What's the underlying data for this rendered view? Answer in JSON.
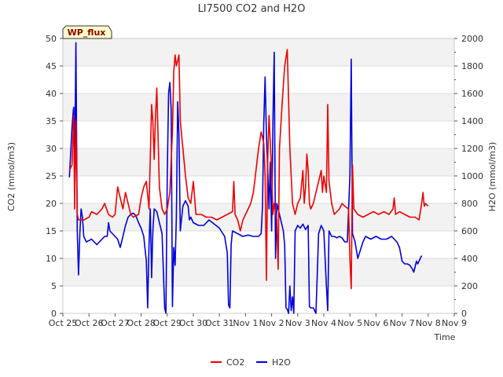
{
  "chart_data": {
    "type": "line",
    "title": "LI7500 CO2 and H2O",
    "xlabel": "Time",
    "ylabel_left": "CO2 (mmol/m3)",
    "ylabel_right": "H2O (mmol/m3)",
    "ylim_left": [
      0,
      50
    ],
    "ylim_right": [
      0,
      2000
    ],
    "xlim": [
      0,
      15
    ],
    "yticks_left": [
      0,
      5,
      10,
      15,
      20,
      25,
      30,
      35,
      40,
      45,
      50
    ],
    "yticks_right": [
      0,
      200,
      400,
      600,
      800,
      1000,
      1200,
      1400,
      1600,
      1800,
      2000
    ],
    "x_tick_labels": [
      "Oct 25",
      "Oct 26",
      "Oct 27",
      "Oct 28",
      "Oct 29",
      "Oct 30",
      "Oct 31",
      "Nov 1",
      "Nov 2",
      "Nov 3",
      "Nov 4",
      "Nov 5",
      "Nov 6",
      "Nov 7",
      "Nov 8",
      "Nov 9"
    ],
    "badge": "WP_flux",
    "legend_position": "bottom-center",
    "series": [
      {
        "name": "CO2",
        "color": "#ee0000",
        "axis": "left",
        "points": [
          [
            0.25,
            26
          ],
          [
            0.35,
            27
          ],
          [
            0.42,
            36
          ],
          [
            0.45,
            19
          ],
          [
            0.5,
            35
          ],
          [
            0.55,
            18
          ],
          [
            0.6,
            17
          ],
          [
            0.8,
            17
          ],
          [
            1.0,
            17.5
          ],
          [
            1.1,
            18.5
          ],
          [
            1.3,
            18
          ],
          [
            1.5,
            19
          ],
          [
            1.6,
            20
          ],
          [
            1.75,
            18
          ],
          [
            1.9,
            17.5
          ],
          [
            2.0,
            18
          ],
          [
            2.1,
            23
          ],
          [
            2.2,
            21
          ],
          [
            2.3,
            19
          ],
          [
            2.4,
            22
          ],
          [
            2.5,
            20
          ],
          [
            2.6,
            18
          ],
          [
            2.7,
            17.5
          ],
          [
            2.9,
            18
          ],
          [
            3.0,
            21
          ],
          [
            3.1,
            23
          ],
          [
            3.2,
            24
          ],
          [
            3.3,
            19
          ],
          [
            3.4,
            38
          ],
          [
            3.45,
            35
          ],
          [
            3.5,
            28
          ],
          [
            3.55,
            36
          ],
          [
            3.6,
            41
          ],
          [
            3.7,
            23
          ],
          [
            3.8,
            19
          ],
          [
            3.9,
            18
          ],
          [
            4.0,
            19
          ],
          [
            4.1,
            22
          ],
          [
            4.2,
            33
          ],
          [
            4.25,
            44
          ],
          [
            4.3,
            47
          ],
          [
            4.35,
            45
          ],
          [
            4.4,
            46
          ],
          [
            4.45,
            47
          ],
          [
            4.5,
            35
          ],
          [
            4.6,
            30
          ],
          [
            4.7,
            25
          ],
          [
            4.8,
            21
          ],
          [
            4.9,
            20
          ],
          [
            5.0,
            24
          ],
          [
            5.1,
            18
          ],
          [
            5.3,
            18
          ],
          [
            5.5,
            17.5
          ],
          [
            5.7,
            17.5
          ],
          [
            5.9,
            17
          ],
          [
            6.1,
            17.5
          ],
          [
            6.3,
            18
          ],
          [
            6.5,
            18.5
          ],
          [
            6.55,
            24
          ],
          [
            6.6,
            18
          ],
          [
            6.7,
            17
          ],
          [
            6.8,
            15
          ],
          [
            6.9,
            17
          ],
          [
            7.0,
            18
          ],
          [
            7.1,
            19
          ],
          [
            7.2,
            20
          ],
          [
            7.3,
            22
          ],
          [
            7.4,
            26
          ],
          [
            7.5,
            30
          ],
          [
            7.6,
            33
          ],
          [
            7.7,
            31
          ],
          [
            7.75,
            25
          ],
          [
            7.8,
            6
          ],
          [
            7.85,
            28
          ],
          [
            7.9,
            36
          ],
          [
            8.0,
            26
          ],
          [
            8.05,
            18
          ],
          [
            8.1,
            20
          ],
          [
            8.2,
            17
          ],
          [
            8.25,
            8
          ],
          [
            8.3,
            30
          ],
          [
            8.4,
            38
          ],
          [
            8.5,
            45
          ],
          [
            8.6,
            48
          ],
          [
            8.7,
            30
          ],
          [
            8.8,
            20
          ],
          [
            8.9,
            18
          ],
          [
            9.0,
            20
          ],
          [
            9.1,
            21
          ],
          [
            9.2,
            26
          ],
          [
            9.25,
            20
          ],
          [
            9.3,
            23
          ],
          [
            9.35,
            29
          ],
          [
            9.4,
            26
          ],
          [
            9.45,
            20
          ],
          [
            9.5,
            19
          ],
          [
            9.6,
            20
          ],
          [
            9.7,
            22
          ],
          [
            9.8,
            24
          ],
          [
            9.9,
            26
          ],
          [
            9.95,
            22
          ],
          [
            10.0,
            25
          ],
          [
            10.1,
            22
          ],
          [
            10.15,
            38
          ],
          [
            10.2,
            24
          ],
          [
            10.3,
            20
          ],
          [
            10.4,
            18
          ],
          [
            10.5,
            18.5
          ],
          [
            10.6,
            19
          ],
          [
            10.7,
            20
          ],
          [
            10.8,
            19.5
          ],
          [
            10.95,
            19
          ],
          [
            11.0,
            10
          ],
          [
            11.05,
            4.5
          ],
          [
            11.1,
            27
          ],
          [
            11.15,
            19
          ],
          [
            11.3,
            18
          ],
          [
            11.5,
            17.5
          ],
          [
            11.7,
            18
          ],
          [
            11.9,
            18.5
          ],
          [
            12.1,
            18
          ],
          [
            12.3,
            18.5
          ],
          [
            12.5,
            18
          ],
          [
            12.65,
            19
          ],
          [
            12.7,
            21
          ],
          [
            12.75,
            18
          ],
          [
            12.9,
            18.5
          ],
          [
            13.1,
            18
          ],
          [
            13.3,
            17.5
          ],
          [
            13.5,
            17.5
          ],
          [
            13.65,
            17
          ],
          [
            13.75,
            20
          ],
          [
            13.8,
            22
          ],
          [
            13.85,
            19.5
          ],
          [
            13.9,
            20
          ],
          [
            14.0,
            19.5
          ]
        ]
      },
      {
        "name": "H2O",
        "color": "#0000dd",
        "axis": "right",
        "points": [
          [
            0.25,
            990
          ],
          [
            0.35,
            1350
          ],
          [
            0.4,
            1480
          ],
          [
            0.42,
            1500
          ],
          [
            0.45,
            1000
          ],
          [
            0.5,
            1970
          ],
          [
            0.55,
            600
          ],
          [
            0.6,
            280
          ],
          [
            0.65,
            580
          ],
          [
            0.7,
            760
          ],
          [
            0.75,
            700
          ],
          [
            0.8,
            560
          ],
          [
            0.9,
            520
          ],
          [
            1.0,
            530
          ],
          [
            1.1,
            540
          ],
          [
            1.2,
            520
          ],
          [
            1.3,
            500
          ],
          [
            1.4,
            520
          ],
          [
            1.5,
            540
          ],
          [
            1.6,
            560
          ],
          [
            1.7,
            560
          ],
          [
            1.75,
            660
          ],
          [
            1.8,
            600
          ],
          [
            1.9,
            580
          ],
          [
            2.0,
            560
          ],
          [
            2.1,
            540
          ],
          [
            2.2,
            480
          ],
          [
            2.3,
            560
          ],
          [
            2.4,
            640
          ],
          [
            2.5,
            700
          ],
          [
            2.6,
            720
          ],
          [
            2.7,
            730
          ],
          [
            2.8,
            710
          ],
          [
            2.9,
            660
          ],
          [
            3.0,
            620
          ],
          [
            3.1,
            560
          ],
          [
            3.2,
            380
          ],
          [
            3.25,
            40
          ],
          [
            3.3,
            500
          ],
          [
            3.35,
            760
          ],
          [
            3.4,
            260
          ],
          [
            3.45,
            600
          ],
          [
            3.5,
            760
          ],
          [
            3.6,
            740
          ],
          [
            3.7,
            660
          ],
          [
            3.8,
            580
          ],
          [
            3.9,
            40
          ],
          [
            3.95,
            0
          ],
          [
            4.0,
            1000
          ],
          [
            4.05,
            1600
          ],
          [
            4.1,
            1680
          ],
          [
            4.15,
            1480
          ],
          [
            4.2,
            50
          ],
          [
            4.25,
            480
          ],
          [
            4.3,
            350
          ],
          [
            4.35,
            700
          ],
          [
            4.4,
            1540
          ],
          [
            4.45,
            1300
          ],
          [
            4.5,
            600
          ],
          [
            4.6,
            780
          ],
          [
            4.7,
            820
          ],
          [
            4.8,
            780
          ],
          [
            4.85,
            680
          ],
          [
            4.9,
            700
          ],
          [
            5.0,
            660
          ],
          [
            5.2,
            640
          ],
          [
            5.4,
            640
          ],
          [
            5.6,
            680
          ],
          [
            5.8,
            650
          ],
          [
            6.0,
            620
          ],
          [
            6.2,
            560
          ],
          [
            6.3,
            440
          ],
          [
            6.35,
            60
          ],
          [
            6.4,
            40
          ],
          [
            6.45,
            500
          ],
          [
            6.5,
            600
          ],
          [
            6.7,
            580
          ],
          [
            6.9,
            560
          ],
          [
            7.1,
            570
          ],
          [
            7.3,
            560
          ],
          [
            7.5,
            560
          ],
          [
            7.6,
            580
          ],
          [
            7.65,
            780
          ],
          [
            7.7,
            1380
          ],
          [
            7.75,
            1720
          ],
          [
            7.8,
            1300
          ],
          [
            7.85,
            1060
          ],
          [
            7.9,
            760
          ],
          [
            7.95,
            1100
          ],
          [
            8.0,
            600
          ],
          [
            8.05,
            1400
          ],
          [
            8.1,
            1900
          ],
          [
            8.15,
            400
          ],
          [
            8.2,
            800
          ],
          [
            8.3,
            720
          ],
          [
            8.4,
            640
          ],
          [
            8.45,
            600
          ],
          [
            8.5,
            500
          ],
          [
            8.55,
            40
          ],
          [
            8.6,
            30
          ],
          [
            8.65,
            0
          ],
          [
            8.7,
            200
          ],
          [
            8.75,
            20
          ],
          [
            8.8,
            120
          ],
          [
            8.85,
            0
          ],
          [
            8.9,
            600
          ],
          [
            9.0,
            640
          ],
          [
            9.1,
            620
          ],
          [
            9.2,
            650
          ],
          [
            9.3,
            610
          ],
          [
            9.4,
            640
          ],
          [
            9.45,
            50
          ],
          [
            9.5,
            40
          ],
          [
            9.6,
            40
          ],
          [
            9.7,
            0
          ],
          [
            9.8,
            580
          ],
          [
            9.9,
            640
          ],
          [
            10.0,
            600
          ],
          [
            10.1,
            200
          ],
          [
            10.15,
            20
          ],
          [
            10.2,
            600
          ],
          [
            10.3,
            560
          ],
          [
            10.4,
            560
          ],
          [
            10.5,
            550
          ],
          [
            10.6,
            560
          ],
          [
            10.7,
            550
          ],
          [
            10.8,
            520
          ],
          [
            10.9,
            520
          ],
          [
            11.0,
            1000
          ],
          [
            11.05,
            1850
          ],
          [
            11.1,
            580
          ],
          [
            11.2,
            520
          ],
          [
            11.3,
            400
          ],
          [
            11.4,
            460
          ],
          [
            11.5,
            520
          ],
          [
            11.6,
            560
          ],
          [
            11.8,
            540
          ],
          [
            12.0,
            560
          ],
          [
            12.2,
            540
          ],
          [
            12.4,
            540
          ],
          [
            12.6,
            560
          ],
          [
            12.8,
            520
          ],
          [
            12.9,
            480
          ],
          [
            13.0,
            380
          ],
          [
            13.1,
            360
          ],
          [
            13.2,
            360
          ],
          [
            13.3,
            350
          ],
          [
            13.4,
            320
          ],
          [
            13.45,
            300
          ],
          [
            13.5,
            340
          ],
          [
            13.55,
            380
          ],
          [
            13.6,
            360
          ],
          [
            13.7,
            400
          ],
          [
            13.75,
            420
          ]
        ]
      }
    ]
  }
}
